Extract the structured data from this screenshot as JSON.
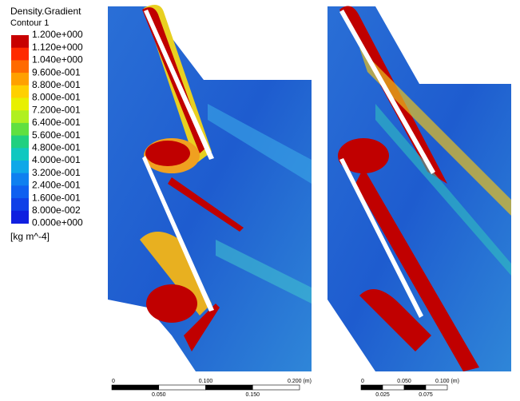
{
  "legend": {
    "title": "Density.Gradient",
    "subtitle": "Contour 1",
    "levels": [
      "1.200e+000",
      "1.120e+000",
      "1.040e+000",
      "9.600e-001",
      "8.800e-001",
      "8.000e-001",
      "7.200e-001",
      "6.400e-001",
      "5.600e-001",
      "4.800e-001",
      "4.000e-001",
      "3.200e-001",
      "2.400e-001",
      "1.600e-001",
      "8.000e-002",
      "0.000e+000"
    ],
    "unit": "[kg m^-4]"
  },
  "scale_left": {
    "top": [
      "0",
      "0.100",
      "0.200 (m)"
    ],
    "bottom": [
      "0.050",
      "0.150"
    ]
  },
  "scale_right": {
    "top": [
      "0",
      "0.050",
      "0.100 (m)"
    ],
    "bottom": [
      "0.025",
      "0.075"
    ]
  }
}
